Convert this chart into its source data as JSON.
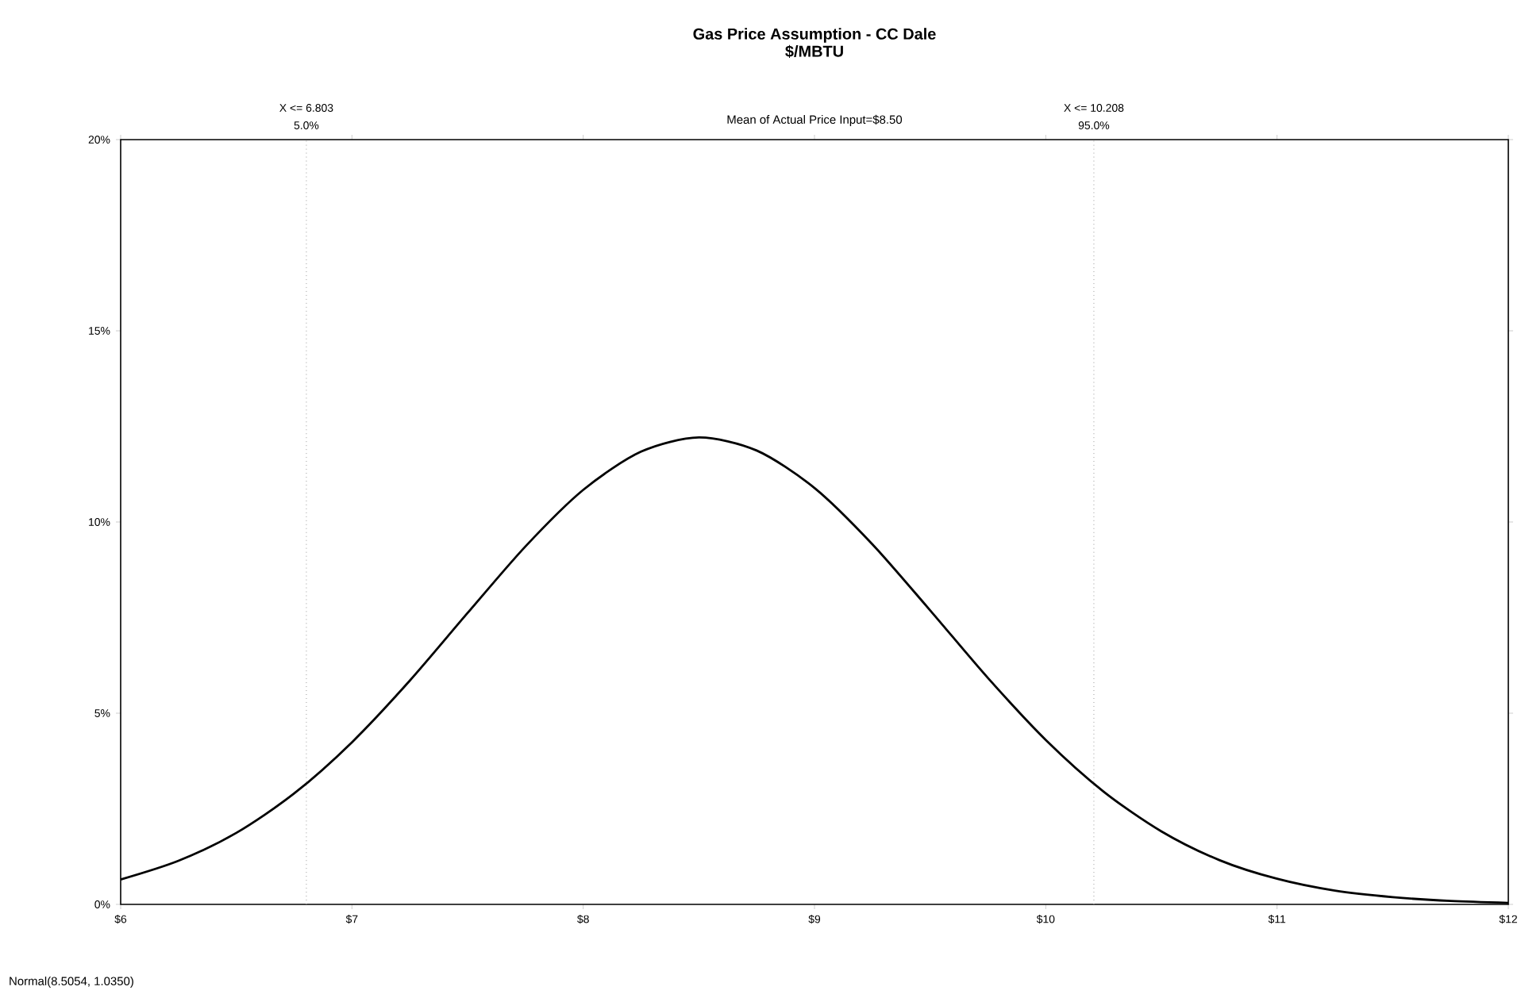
{
  "chart_data": {
    "type": "line",
    "title": "Gas Price Assumption - CC Dale",
    "subtitle": "$/MBTU",
    "x": [
      6,
      6.25,
      6.5,
      6.75,
      7,
      7.25,
      7.5,
      7.75,
      8,
      8.25,
      8.5,
      8.75,
      9,
      9.25,
      9.5,
      9.75,
      10,
      10.25,
      10.5,
      10.75,
      11,
      11.25,
      11.5,
      11.75,
      12
    ],
    "series": [
      {
        "color": "#000000",
        "values": [
          0.65,
          1.14,
          1.87,
          2.9,
          4.24,
          5.85,
          7.62,
          9.36,
          10.84,
          11.84,
          12.21,
          11.87,
          10.89,
          9.42,
          7.69,
          5.92,
          4.3,
          2.95,
          1.91,
          1.16,
          0.67,
          0.36,
          0.19,
          0.09,
          0.04
        ]
      }
    ],
    "xlim": [
      6,
      12
    ],
    "xticks": [
      {
        "value": 6,
        "label": "$6"
      },
      {
        "value": 7,
        "label": "$7"
      },
      {
        "value": 8,
        "label": "$8"
      },
      {
        "value": 9,
        "label": "$9"
      },
      {
        "value": 10,
        "label": "$10"
      },
      {
        "value": 11,
        "label": "$11"
      },
      {
        "value": 12,
        "label": "$12"
      }
    ],
    "ylim": [
      0,
      20
    ],
    "yticks": [
      {
        "value": 0,
        "label": "0%"
      },
      {
        "value": 5,
        "label": "5%"
      },
      {
        "value": 10,
        "label": "10%"
      },
      {
        "value": 15,
        "label": "15%"
      },
      {
        "value": 20,
        "label": "20%"
      }
    ],
    "ref_lines": [
      {
        "axis": "x",
        "value": 6.803,
        "label": "X <= 6.803",
        "color": "#999999",
        "line_style": "dotted"
      },
      {
        "axis": "x",
        "value": 10.208,
        "label": "X <= 10.208",
        "color": "#999999",
        "line_style": "dotted"
      }
    ],
    "annotations": [
      "5.0%",
      "95.0%",
      "Mean of Actual Price Input=$8.50",
      "Normal(8.5054, 1.0350)"
    ],
    "grid": false,
    "marker": "none",
    "line_style": "solid"
  }
}
